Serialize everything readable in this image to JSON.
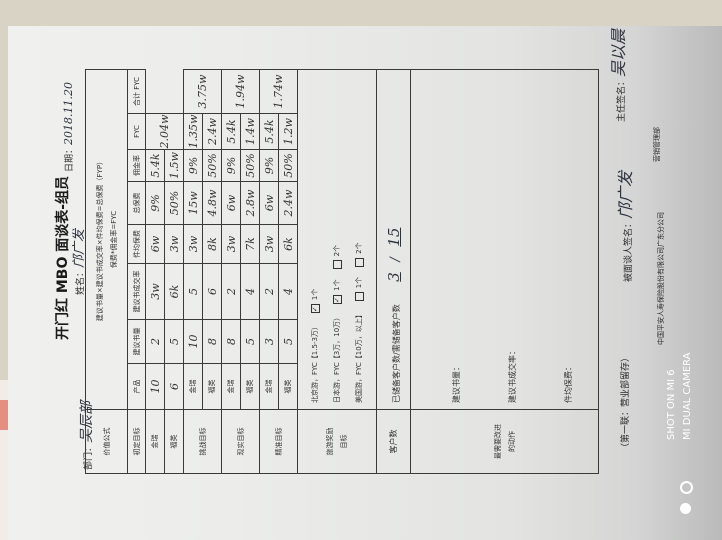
{
  "header": {
    "title": "开门红 MBO 面谈表-组员",
    "department_label": "部门：",
    "department_value": "吴辰部",
    "name_label": "姓名：",
    "name_value": "邝广发",
    "date_label": "日期：",
    "date_value": "2018.11.20"
  },
  "formula": {
    "label": "价值公式",
    "line1": "建议书量×建议书成交率×件均保费=总保费（FYP）",
    "line2": "保费*佣金率=FYC"
  },
  "table": {
    "columns": [
      "产品",
      "建议书量",
      "建议书成交率",
      "件均保费",
      "总保费",
      "佣金率",
      "FYC",
      "合计 FYC"
    ],
    "groups": [
      {
        "label": "初定目标",
        "total": "2.04w",
        "rows": [
          {
            "product": "金瑞",
            "proposals": "10",
            "close_rate": "2",
            "avg_premium": "3w",
            "total_premium": "6w",
            "commission": "9%",
            "fyc": "5.4k"
          },
          {
            "product": "福类",
            "proposals": "6",
            "close_rate": "5",
            "avg_premium": "6k",
            "total_premium": "3w",
            "commission": "50%",
            "fyc": "1.5w"
          }
        ]
      },
      {
        "label": "挑战目标",
        "total": "3.75w",
        "rows": [
          {
            "product": "金瑞",
            "proposals": "10",
            "close_rate": "5",
            "avg_premium": "3w",
            "total_premium": "15w",
            "commission": "9%",
            "fyc": "1.35w"
          },
          {
            "product": "福类",
            "proposals": "8",
            "close_rate": "6",
            "avg_premium": "8k",
            "total_premium": "4.8w",
            "commission": "50%",
            "fyc": "2.4w"
          }
        ]
      },
      {
        "label": "现实目标",
        "total": "1.94w",
        "rows": [
          {
            "product": "金瑞",
            "proposals": "8",
            "close_rate": "2",
            "avg_premium": "3w",
            "total_premium": "6w",
            "commission": "9%",
            "fyc": "5.4k"
          },
          {
            "product": "福类",
            "proposals": "5",
            "close_rate": "4",
            "avg_premium": "7k",
            "total_premium": "2.8w",
            "commission": "50%",
            "fyc": "1.4w"
          }
        ]
      },
      {
        "label": "精准目标",
        "total": "1.74w",
        "rows": [
          {
            "product": "金瑞",
            "proposals": "3",
            "close_rate": "2",
            "avg_premium": "3w",
            "total_premium": "6w",
            "commission": "9%",
            "fyc": "5.4k"
          },
          {
            "product": "福类",
            "proposals": "5",
            "close_rate": "4",
            "avg_premium": "6k",
            "total_premium": "2.4w",
            "commission": "50%",
            "fyc": "1.2w"
          }
        ]
      }
    ]
  },
  "tour": {
    "label1": "旅游奖励",
    "label2": "目标",
    "options": [
      {
        "text": "北京游，FYC【1.5-3万）",
        "opt1": "1个",
        "opt1_checked": true,
        "opt2": ""
      },
      {
        "text": "日本游，FYC【3万，10万）",
        "opt1": "1个",
        "opt1_checked": true,
        "opt2": "2个"
      },
      {
        "text": "美国游，FYC【10万，以上】",
        "opt1": "1个",
        "opt1_checked": false,
        "opt2": "2个"
      }
    ]
  },
  "customers": {
    "label": "客户数",
    "text": "已储备客户数/需储备客户数",
    "reserved": "3",
    "sep": "/",
    "needed": "15"
  },
  "improve": {
    "label1": "最需要改进",
    "label2": "的动作",
    "items": [
      "建议书量：",
      "建议书成交率：",
      "件均保费："
    ]
  },
  "footer": {
    "copy": "（第一联：营业部留存）",
    "interviewee_label": "被面谈人签名：",
    "interviewee_sig": "邝广发",
    "director_label": "主任签名：",
    "director_sig": "吴以晨",
    "company": "中国平安人寿保险股份有限公司广东分公司",
    "dept": "营销管理部"
  },
  "watermark": {
    "line1": "SHOT ON MI 6",
    "line2": "MI DUAL CAMERA"
  }
}
